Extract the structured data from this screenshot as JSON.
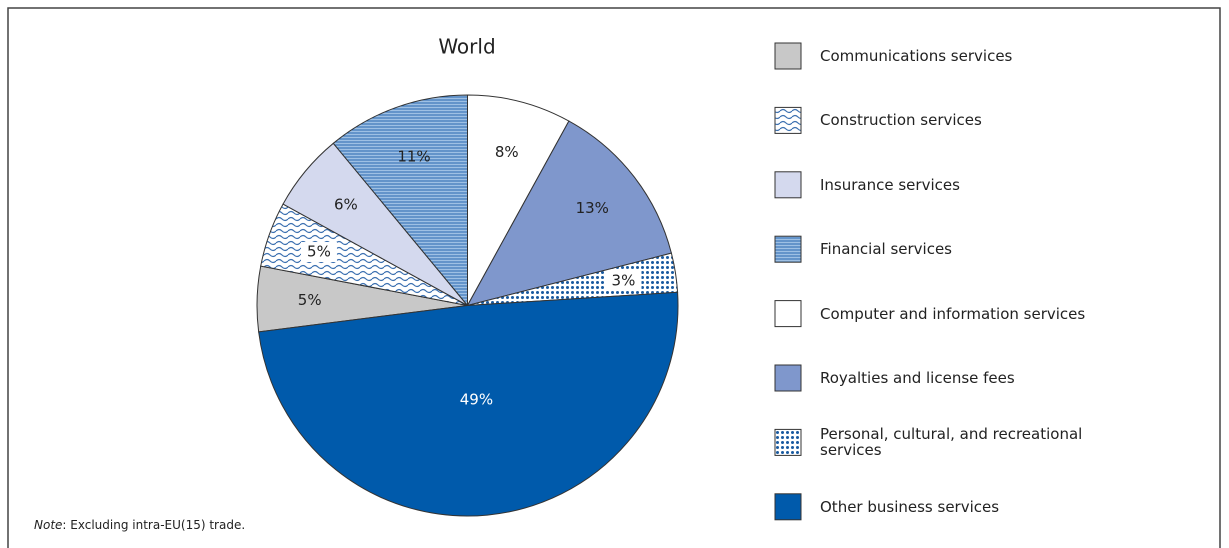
{
  "chart_data": {
    "type": "pie",
    "title": "World",
    "note_label": "Note",
    "note_text": ": Excluding intra-EU(15) trade.",
    "categories": [
      "Communications services",
      "Construction services",
      "Insurance services",
      "Financial services",
      "Computer and information services",
      "Royalties and license fees",
      "Personal, cultural, and recreational services",
      "Other business services"
    ],
    "values": [
      5,
      5,
      6,
      11,
      8,
      13,
      3,
      49
    ],
    "value_labels": [
      "5%",
      "5%",
      "6%",
      "11%",
      "8%",
      "13%",
      "3%",
      "49%"
    ],
    "colors": [
      "#c8c8c8",
      "#3a6fb0",
      "#d4d9ee",
      "#3a6fb0",
      "#ffffff",
      "#7f97cc",
      "#1a5aa0",
      "#005aab"
    ],
    "patterns": [
      null,
      "wave",
      null,
      "lines",
      null,
      null,
      "dots",
      null
    ]
  }
}
